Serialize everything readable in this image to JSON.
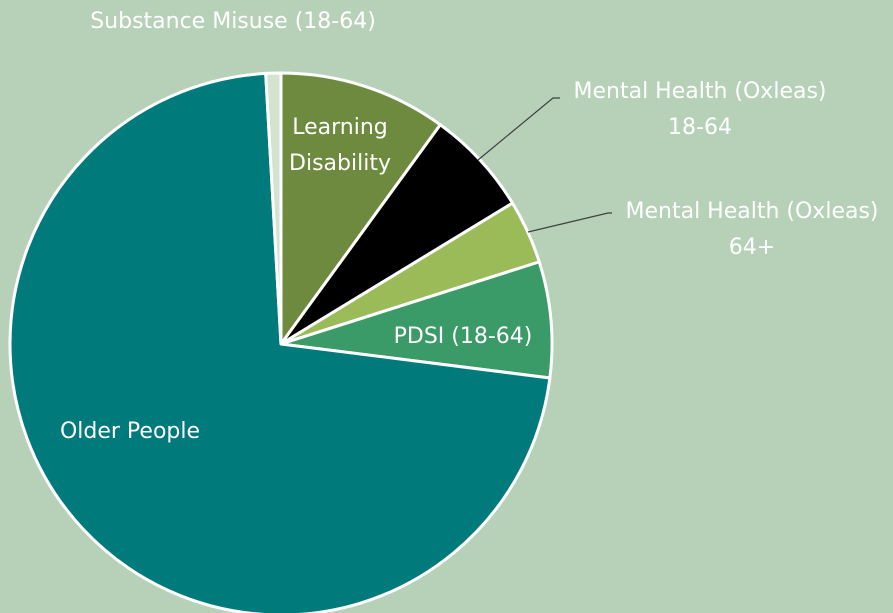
{
  "chart_data": {
    "type": "pie",
    "categories": [
      "Learning Disability",
      "Mental Health (Oxleas) 18-64",
      "Mental Health (Oxleas) 64+",
      "PDSI (18-64)",
      "Older People",
      "Substance Misuse (18-64)"
    ],
    "values": [
      10,
      6.3,
      3.8,
      6.9,
      72.1,
      0.9
    ],
    "colors": [
      "#6e8a3e",
      "#000000",
      "#9bbb59",
      "#3a9a68",
      "#007a7a",
      "#d4e3cf"
    ]
  }
}
